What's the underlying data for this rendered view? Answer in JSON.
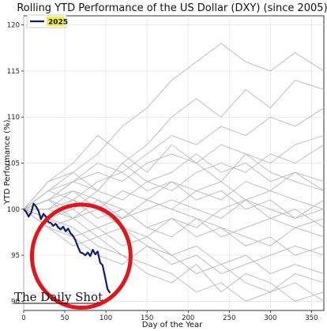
{
  "chart_data": {
    "type": "line",
    "title": "Rolling YTD Performance of the US Dollar (DXY) (since 2005)",
    "xlabel": "Day of the Year",
    "ylabel": "YTD Performance (%)",
    "xlim": [
      0,
      365
    ],
    "ylim": [
      89,
      121
    ],
    "xticks": [
      0,
      50,
      100,
      150,
      200,
      250,
      300,
      350
    ],
    "yticks": [
      90,
      95,
      100,
      105,
      110,
      115,
      120
    ],
    "grid": true,
    "legend": {
      "placement": "top-left",
      "entries": [
        "2025"
      ]
    },
    "highlight_series": {
      "name": "2025",
      "color": "#0d1b7a",
      "x": [
        0,
        3,
        6,
        9,
        12,
        15,
        18,
        21,
        24,
        27,
        30,
        33,
        36,
        39,
        42,
        45,
        48,
        51,
        54,
        57,
        60,
        63,
        66,
        69,
        72,
        75,
        78,
        81,
        84,
        87,
        90,
        93,
        96,
        99,
        102,
        105
      ],
      "y": [
        100.0,
        99.7,
        99.2,
        99.6,
        100.6,
        100.3,
        99.8,
        98.9,
        99.5,
        99.2,
        98.6,
        98.5,
        98.2,
        98.4,
        98.0,
        97.8,
        98.1,
        97.6,
        97.9,
        97.4,
        97.1,
        96.6,
        95.9,
        95.3,
        95.2,
        95.0,
        95.3,
        94.9,
        95.6,
        95.1,
        95.4,
        94.2,
        93.9,
        92.6,
        91.3,
        90.9
      ]
    },
    "background_series_color": "#b9b9b9",
    "background_series": [
      {
        "x": [
          0,
          30,
          60,
          90,
          120,
          150,
          180,
          210,
          240,
          270,
          300,
          330,
          365
        ],
        "y": [
          100,
          103,
          105,
          108,
          106,
          104,
          107,
          105,
          103,
          106,
          104,
          103,
          102
        ]
      },
      {
        "x": [
          0,
          30,
          60,
          90,
          120,
          150,
          180,
          210,
          240,
          270,
          300,
          330,
          365
        ],
        "y": [
          100,
          102,
          104,
          106,
          109,
          111,
          114,
          116,
          118,
          116,
          115,
          117,
          115
        ]
      },
      {
        "x": [
          0,
          30,
          60,
          90,
          120,
          150,
          180,
          210,
          240,
          270,
          300,
          330,
          365
        ],
        "y": [
          100,
          101,
          103,
          102,
          105,
          107,
          110,
          112,
          110,
          113,
          111,
          114,
          113
        ]
      },
      {
        "x": [
          0,
          30,
          60,
          90,
          120,
          150,
          180,
          210,
          240,
          270,
          300,
          330,
          365
        ],
        "y": [
          100,
          99,
          98,
          96,
          95,
          93,
          92,
          94,
          91,
          93,
          92,
          90,
          91
        ]
      },
      {
        "x": [
          0,
          30,
          60,
          90,
          120,
          150,
          180,
          210,
          240,
          270,
          300,
          330,
          365
        ],
        "y": [
          100,
          98,
          97,
          95,
          94,
          96,
          95,
          93,
          94,
          92,
          91,
          93,
          92
        ]
      },
      {
        "x": [
          0,
          30,
          60,
          90,
          120,
          150,
          180,
          210,
          240,
          270,
          300,
          330,
          365
        ],
        "y": [
          100,
          101,
          100,
          102,
          101,
          103,
          102,
          104,
          105,
          104,
          106,
          105,
          107
        ]
      },
      {
        "x": [
          0,
          30,
          60,
          90,
          120,
          150,
          180,
          210,
          240,
          270,
          300,
          330,
          365
        ],
        "y": [
          100,
          100,
          99,
          101,
          100,
          98,
          99,
          97,
          98,
          96,
          97,
          95,
          96
        ]
      },
      {
        "x": [
          0,
          30,
          60,
          90,
          120,
          150,
          180,
          210,
          240,
          270,
          300,
          330,
          365
        ],
        "y": [
          100,
          102,
          101,
          103,
          104,
          102,
          103,
          101,
          102,
          100,
          101,
          99,
          100
        ]
      },
      {
        "x": [
          0,
          30,
          60,
          90,
          120,
          150,
          180,
          210,
          240,
          270,
          300,
          330,
          365
        ],
        "y": [
          100,
          99,
          101,
          100,
          98,
          97,
          99,
          98,
          100,
          101,
          99,
          100,
          98
        ]
      },
      {
        "x": [
          0,
          30,
          60,
          90,
          120,
          150,
          180,
          210,
          240,
          270,
          300,
          330,
          365
        ],
        "y": [
          100,
          101,
          102,
          100,
          99,
          101,
          100,
          102,
          103,
          101,
          102,
          104,
          103
        ]
      },
      {
        "x": [
          0,
          30,
          60,
          90,
          120,
          150,
          180,
          210,
          240,
          270,
          300,
          330,
          365
        ],
        "y": [
          100,
          98,
          99,
          97,
          98,
          96,
          94,
          95,
          93,
          94,
          95,
          96,
          95
        ]
      },
      {
        "x": [
          0,
          30,
          60,
          90,
          120,
          150,
          180,
          210,
          240,
          270,
          300,
          330,
          365
        ],
        "y": [
          100,
          102,
          103,
          105,
          104,
          106,
          108,
          107,
          109,
          108,
          110,
          109,
          111
        ]
      },
      {
        "x": [
          0,
          30,
          60,
          90,
          120,
          150,
          180,
          210,
          240,
          270,
          300,
          330,
          365
        ],
        "y": [
          100,
          99,
          97,
          98,
          96,
          97,
          95,
          96,
          94,
          95,
          93,
          94,
          93
        ]
      },
      {
        "x": [
          0,
          30,
          60,
          90,
          120,
          150,
          180,
          210,
          240,
          270,
          300,
          330,
          365
        ],
        "y": [
          100,
          101,
          99,
          100,
          102,
          101,
          103,
          102,
          101,
          103,
          102,
          101,
          100
        ]
      },
      {
        "x": [
          0,
          30,
          60,
          90,
          120,
          150,
          180,
          210,
          240,
          270,
          300,
          330,
          365
        ],
        "y": [
          100,
          100,
          101,
          99,
          100,
          98,
          97,
          99,
          98,
          97,
          96,
          98,
          97
        ]
      },
      {
        "x": [
          0,
          30,
          60,
          90,
          120,
          150,
          180,
          210,
          240,
          270,
          300,
          330,
          365
        ],
        "y": [
          100,
          103,
          104,
          102,
          105,
          103,
          104,
          106,
          104,
          105,
          103,
          104,
          102
        ]
      },
      {
        "x": [
          0,
          30,
          60,
          90,
          120,
          150,
          180,
          210,
          240,
          270,
          300,
          330,
          365
        ],
        "y": [
          100,
          99,
          100,
          98,
          99,
          101,
          100,
          99,
          97,
          98,
          99,
          98,
          99
        ]
      },
      {
        "x": [
          0,
          30,
          60,
          90,
          120,
          150,
          180,
          210,
          240,
          270,
          300,
          330,
          365
        ],
        "y": [
          100,
          101,
          103,
          104,
          103,
          105,
          106,
          105,
          107,
          106,
          105,
          107,
          108
        ]
      },
      {
        "x": [
          0,
          30,
          60,
          90,
          120,
          150,
          180,
          210,
          240,
          270,
          300,
          330,
          365
        ],
        "y": [
          100,
          98,
          96,
          97,
          95,
          94,
          93,
          91,
          92,
          90,
          91,
          92,
          90
        ]
      },
      {
        "x": [
          0,
          30,
          60,
          90,
          120,
          150,
          180,
          210,
          240,
          270,
          300,
          330,
          365
        ],
        "y": [
          100,
          100,
          102,
          101,
          99,
          100,
          101,
          100,
          99,
          101,
          100,
          99,
          101
        ]
      }
    ],
    "annotation": {
      "shape": "ellipse",
      "color": "#e3141b",
      "x_range": [
        10,
        130
      ],
      "y_range": [
        89.3,
        100.5
      ]
    }
  },
  "brand": {
    "text": "The Daily Shot",
    "accent": "#d0121b"
  }
}
